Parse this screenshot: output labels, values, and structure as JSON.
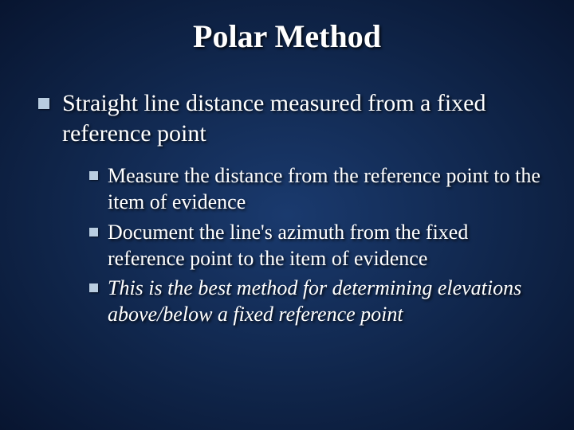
{
  "title": "Polar Method",
  "level1": {
    "text": "Straight line distance measured from a fixed reference point"
  },
  "level2": [
    {
      "text": "Measure the distance from the reference point to the item of evidence",
      "italic": false
    },
    {
      "text": "Document the line's azimuth from the fixed reference point to the item of evidence",
      "italic": false
    },
    {
      "text": "This is the best method for determining elevations above/below a fixed reference point",
      "italic": true
    }
  ],
  "colors": {
    "bullet": "#b9cde0",
    "text": "#ffffff",
    "bg_center": "#1a3a6e",
    "bg_edge": "#081530"
  },
  "fonts": {
    "title_size": 40,
    "level1_size": 30,
    "level2_size": 26,
    "family": "Times New Roman"
  }
}
